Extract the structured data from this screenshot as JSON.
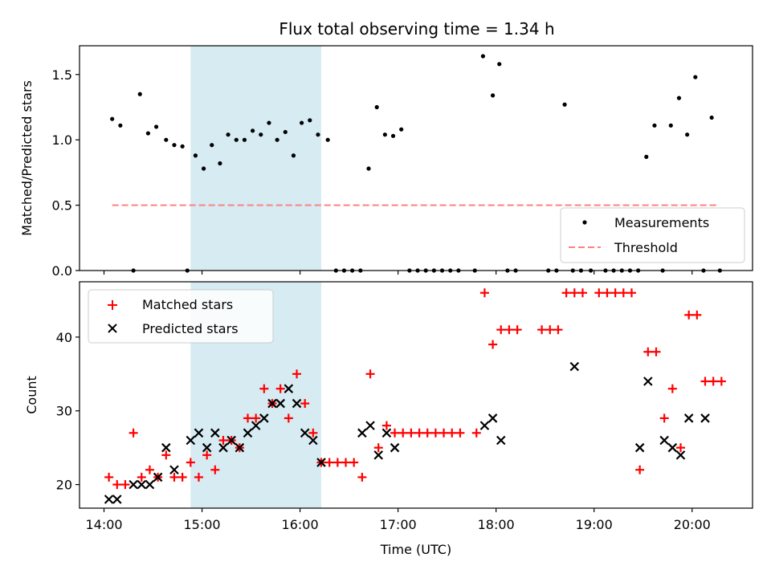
{
  "chart_data": [
    {
      "type": "scatter",
      "title": "Flux total observing time = 1.34 h",
      "xlabel": "",
      "ylabel": "Matched/Predicted stars",
      "ylim": [
        0,
        1.72
      ],
      "yticks": [
        "0.0",
        "0.5",
        "1.0",
        "1.5"
      ],
      "highlight_span": [
        "14:53",
        "16:13"
      ],
      "legend": {
        "position": "bottom-right",
        "items": [
          "Measurements",
          "Threshold"
        ]
      },
      "threshold": {
        "name": "Threshold",
        "value": 0.5,
        "x_range": [
          "14:05",
          "20:15"
        ],
        "color": "#ff8080"
      },
      "series": [
        {
          "name": "Measurements",
          "color": "#000000",
          "x": [
            "14:05",
            "14:10",
            "14:18",
            "14:22",
            "14:27",
            "14:32",
            "14:38",
            "14:43",
            "14:48",
            "14:51",
            "14:56",
            "15:01",
            "15:06",
            "15:11",
            "15:16",
            "15:21",
            "15:26",
            "15:31",
            "15:36",
            "15:41",
            "15:46",
            "15:51",
            "15:56",
            "16:01",
            "16:06",
            "16:11",
            "16:17",
            "16:22",
            "16:27",
            "16:32",
            "16:37",
            "16:42",
            "16:47",
            "16:52",
            "16:57",
            "17:02",
            "17:07",
            "17:12",
            "17:17",
            "17:22",
            "17:27",
            "17:32",
            "17:37",
            "17:47",
            "17:52",
            "17:58",
            "18:02",
            "18:07",
            "18:12",
            "18:32",
            "18:37",
            "18:42",
            "18:47",
            "18:52",
            "18:58",
            "19:07",
            "19:12",
            "19:17",
            "19:22",
            "19:27",
            "19:32",
            "19:37",
            "19:42",
            "19:47",
            "19:52",
            "19:57",
            "20:02",
            "20:07",
            "20:12",
            "20:17"
          ],
          "y": [
            1.16,
            1.11,
            0.0,
            1.35,
            1.05,
            1.1,
            1.0,
            0.96,
            0.95,
            0.0,
            0.88,
            0.78,
            0.96,
            0.82,
            1.04,
            1.0,
            1.0,
            1.07,
            1.04,
            1.13,
            1.0,
            1.06,
            0.88,
            1.13,
            1.15,
            1.04,
            1.0,
            0.0,
            0.0,
            0.0,
            0.0,
            0.78,
            1.25,
            1.04,
            1.03,
            1.08,
            0.0,
            0.0,
            0.0,
            0.0,
            0.0,
            0.0,
            0.0,
            0.0,
            1.64,
            1.34,
            1.58,
            0.0,
            0.0,
            0.0,
            0.0,
            1.27,
            0.0,
            0.0,
            0.0,
            0.0,
            0.0,
            0.0,
            0.0,
            0.0,
            0.87,
            1.11,
            0.0,
            1.11,
            1.32,
            1.04,
            1.48,
            0.0,
            1.17,
            0.0
          ]
        }
      ]
    },
    {
      "type": "scatter",
      "title": "",
      "xlabel": "Time (UTC)",
      "ylabel": "Count",
      "ylim": [
        16.8,
        47.5
      ],
      "yticks": [
        "20",
        "30",
        "40"
      ],
      "xticks": [
        "14:00",
        "15:00",
        "16:00",
        "17:00",
        "18:00",
        "19:00",
        "20:00"
      ],
      "highlight_span": [
        "14:53",
        "16:13"
      ],
      "legend": {
        "position": "top-left",
        "items": [
          "Matched stars",
          "Predicted stars"
        ]
      },
      "series": [
        {
          "name": "Matched stars",
          "marker": "+",
          "color": "#ff0000",
          "x": [
            "14:03",
            "14:08",
            "14:13",
            "14:18",
            "14:23",
            "14:28",
            "14:33",
            "14:38",
            "14:43",
            "14:48",
            "14:53",
            "14:58",
            "15:03",
            "15:08",
            "15:13",
            "15:18",
            "15:23",
            "15:28",
            "15:33",
            "15:38",
            "15:43",
            "15:48",
            "15:53",
            "15:58",
            "16:03",
            "16:08",
            "16:13",
            "16:18",
            "16:23",
            "16:28",
            "16:33",
            "16:38",
            "16:43",
            "16:48",
            "16:53",
            "16:58",
            "17:03",
            "17:08",
            "17:13",
            "17:18",
            "17:23",
            "17:28",
            "17:33",
            "17:38",
            "17:48",
            "17:53",
            "17:58",
            "18:03",
            "18:08",
            "18:13",
            "18:28",
            "18:33",
            "18:38",
            "18:43",
            "18:48",
            "18:53",
            "19:03",
            "19:08",
            "19:13",
            "19:18",
            "19:23",
            "19:28",
            "19:33",
            "19:38",
            "19:43",
            "19:48",
            "19:53",
            "19:58",
            "20:03",
            "20:08",
            "20:13",
            "20:18"
          ],
          "y": [
            21,
            20,
            20,
            27,
            21,
            22,
            21,
            24,
            21,
            21,
            23,
            21,
            24,
            22,
            26,
            26,
            25,
            29,
            29,
            33,
            31,
            33,
            29,
            35,
            31,
            27,
            23,
            23,
            23,
            23,
            23,
            21,
            35,
            25,
            28,
            27,
            27,
            27,
            27,
            27,
            27,
            27,
            27,
            27,
            27,
            46,
            39,
            41,
            41,
            41,
            41,
            41,
            41,
            46,
            46,
            46,
            46,
            46,
            46,
            46,
            46,
            22,
            38,
            38,
            29,
            33,
            25,
            43,
            43,
            34,
            34,
            34
          ]
        },
        {
          "name": "Predicted stars",
          "marker": "x",
          "color": "#000000",
          "x": [
            "14:03",
            "14:08",
            "14:18",
            "14:23",
            "14:28",
            "14:33",
            "14:38",
            "14:43",
            "14:53",
            "14:58",
            "15:03",
            "15:08",
            "15:13",
            "15:18",
            "15:23",
            "15:28",
            "15:33",
            "15:38",
            "15:43",
            "15:48",
            "15:53",
            "15:58",
            "16:03",
            "16:08",
            "16:13",
            "16:38",
            "16:43",
            "16:48",
            "16:53",
            "16:58",
            "17:53",
            "17:58",
            "18:03",
            "18:48",
            "19:28",
            "19:33",
            "19:43",
            "19:48",
            "19:53",
            "19:58",
            "20:08"
          ],
          "y": [
            18,
            18,
            20,
            20,
            20,
            21,
            25,
            22,
            26,
            27,
            25,
            27,
            25,
            26,
            25,
            27,
            28,
            29,
            31,
            31,
            33,
            31,
            27,
            26,
            23,
            27,
            28,
            24,
            27,
            25,
            28,
            29,
            26,
            36,
            25,
            34,
            26,
            25,
            24,
            29,
            29
          ]
        }
      ]
    }
  ]
}
